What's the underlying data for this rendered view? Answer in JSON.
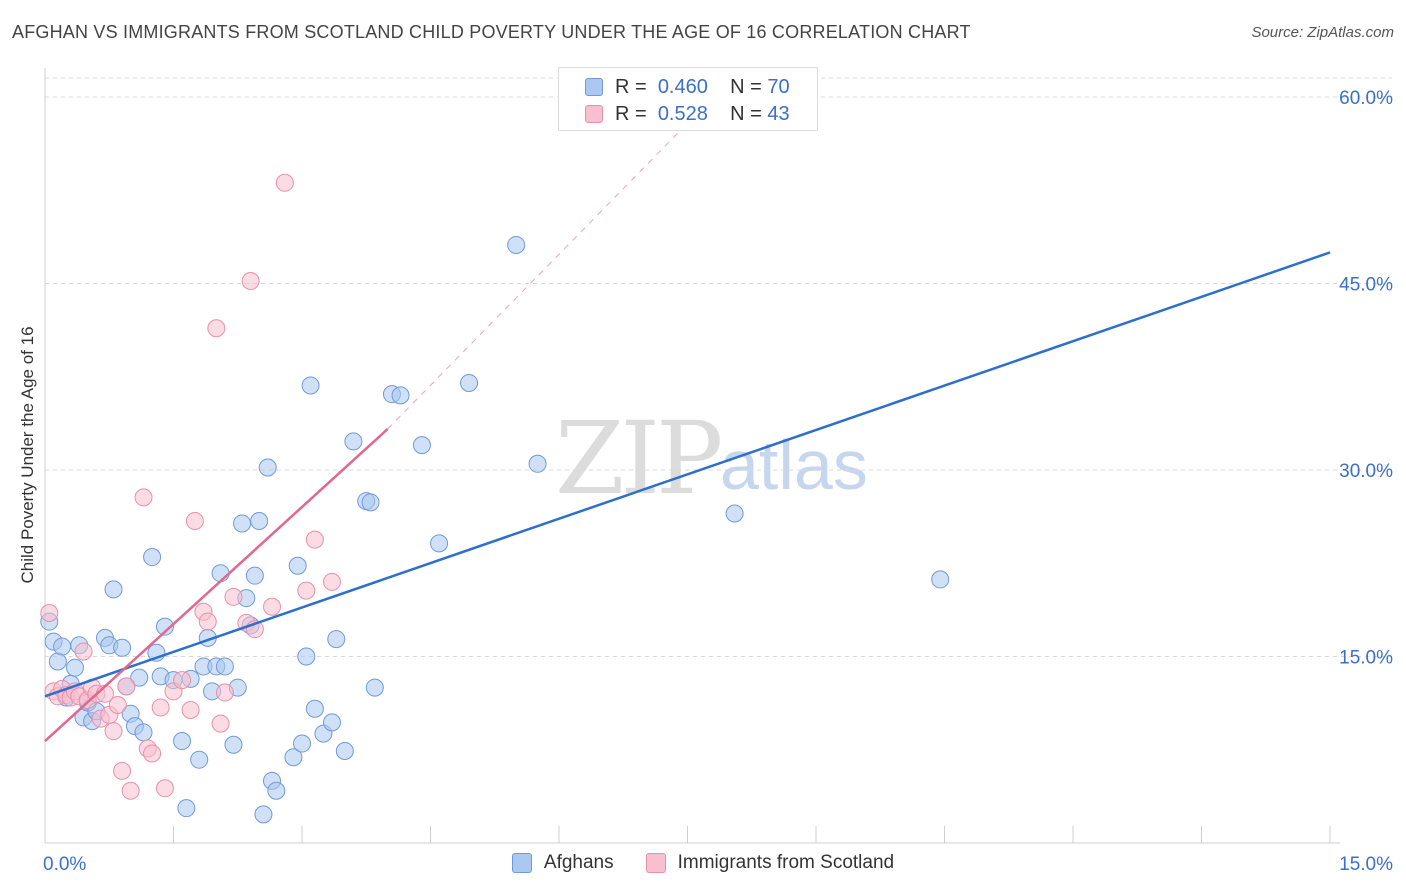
{
  "title": "AFGHAN VS IMMIGRANTS FROM SCOTLAND CHILD POVERTY UNDER THE AGE OF 16 CORRELATION CHART",
  "source": "Source: ZipAtlas.com",
  "watermark": {
    "zip": "ZIP",
    "atlas": "atlas"
  },
  "legend_top": {
    "rows": [
      {
        "r_label": "R =",
        "r_value": "0.460",
        "n_label": "N =",
        "n_value": "70"
      },
      {
        "r_label": "R =",
        "r_value": "0.528",
        "n_label": "N =",
        "n_value": "43"
      }
    ]
  },
  "colors": {
    "blue_fill": "#aac8f0",
    "blue_stroke": "#6f9ad8",
    "blue_line": "#2f6fcc",
    "pink_fill": "#f8bfd0",
    "pink_stroke": "#e890aa",
    "pink_line": "#e3668f",
    "tick_label": "#3b6fc9",
    "grid": "#d8d8d8"
  },
  "chart_data": {
    "type": "scatter",
    "title": "AFGHAN VS IMMIGRANTS FROM SCOTLAND CHILD POVERTY UNDER THE AGE OF 16 CORRELATION CHART",
    "xlabel": "",
    "ylabel": "Child Poverty Under the Age of 16",
    "xlim": [
      0,
      15
    ],
    "ylim": [
      0,
      60
    ],
    "x_ticks": [
      0,
      15
    ],
    "x_tick_labels": [
      "0.0%",
      "15.0%"
    ],
    "y_ticks": [
      15,
      30,
      45,
      60
    ],
    "y_tick_labels": [
      "15.0%",
      "30.0%",
      "45.0%",
      "60.0%"
    ],
    "grid": true,
    "legend_position": "bottom",
    "series": [
      {
        "name": "Afghans",
        "color": "#aac8f0",
        "points": [
          [
            0.05,
            17.8
          ],
          [
            0.1,
            16.2
          ],
          [
            0.15,
            14.6
          ],
          [
            0.2,
            15.8
          ],
          [
            0.25,
            11.7
          ],
          [
            0.3,
            12.8
          ],
          [
            0.35,
            14.1
          ],
          [
            0.4,
            15.9
          ],
          [
            0.45,
            10.1
          ],
          [
            0.5,
            11.3
          ],
          [
            0.55,
            9.8
          ],
          [
            0.6,
            10.6
          ],
          [
            0.7,
            16.5
          ],
          [
            0.75,
            15.9
          ],
          [
            0.8,
            20.4
          ],
          [
            0.9,
            15.7
          ],
          [
            0.95,
            12.6
          ],
          [
            1.0,
            10.4
          ],
          [
            1.05,
            9.4
          ],
          [
            1.1,
            13.3
          ],
          [
            1.15,
            8.9
          ],
          [
            1.25,
            23.0
          ],
          [
            1.3,
            15.3
          ],
          [
            1.35,
            13.4
          ],
          [
            1.4,
            17.4
          ],
          [
            1.5,
            13.1
          ],
          [
            1.6,
            8.2
          ],
          [
            1.65,
            2.8
          ],
          [
            1.7,
            13.2
          ],
          [
            1.8,
            6.7
          ],
          [
            1.85,
            14.2
          ],
          [
            1.9,
            16.5
          ],
          [
            1.95,
            12.2
          ],
          [
            2.0,
            14.2
          ],
          [
            2.05,
            21.7
          ],
          [
            2.1,
            14.2
          ],
          [
            2.2,
            7.9
          ],
          [
            2.25,
            12.5
          ],
          [
            2.3,
            25.7
          ],
          [
            2.35,
            19.7
          ],
          [
            2.4,
            17.5
          ],
          [
            2.45,
            21.5
          ],
          [
            2.5,
            25.9
          ],
          [
            2.55,
            2.3
          ],
          [
            2.6,
            30.2
          ],
          [
            2.65,
            5.0
          ],
          [
            2.7,
            4.2
          ],
          [
            2.9,
            6.9
          ],
          [
            2.95,
            22.3
          ],
          [
            3.0,
            8.0
          ],
          [
            3.05,
            15.0
          ],
          [
            3.1,
            36.8
          ],
          [
            3.15,
            10.8
          ],
          [
            3.25,
            8.8
          ],
          [
            3.35,
            9.7
          ],
          [
            3.4,
            16.4
          ],
          [
            3.5,
            7.4
          ],
          [
            3.6,
            32.3
          ],
          [
            3.75,
            27.5
          ],
          [
            3.8,
            27.4
          ],
          [
            3.85,
            12.5
          ],
          [
            4.05,
            36.1
          ],
          [
            4.15,
            36.0
          ],
          [
            4.4,
            32.0
          ],
          [
            4.6,
            24.1
          ],
          [
            4.95,
            37.0
          ],
          [
            5.5,
            48.1
          ],
          [
            5.75,
            30.5
          ],
          [
            8.05,
            26.5
          ],
          [
            10.45,
            21.2
          ]
        ]
      },
      {
        "name": "Immigrants from Scotland",
        "color": "#f8bfd0",
        "points": [
          [
            0.05,
            18.5
          ],
          [
            0.1,
            12.2
          ],
          [
            0.15,
            11.8
          ],
          [
            0.2,
            12.4
          ],
          [
            0.25,
            11.9
          ],
          [
            0.3,
            11.7
          ],
          [
            0.35,
            12.2
          ],
          [
            0.4,
            11.8
          ],
          [
            0.45,
            15.4
          ],
          [
            0.5,
            11.5
          ],
          [
            0.55,
            12.5
          ],
          [
            0.6,
            12.0
          ],
          [
            0.65,
            10.0
          ],
          [
            0.7,
            12.0
          ],
          [
            0.75,
            10.3
          ],
          [
            0.8,
            9.0
          ],
          [
            0.85,
            11.1
          ],
          [
            0.9,
            5.8
          ],
          [
            0.95,
            12.6
          ],
          [
            1.0,
            4.2
          ],
          [
            1.15,
            27.8
          ],
          [
            1.2,
            7.6
          ],
          [
            1.25,
            7.2
          ],
          [
            1.35,
            10.9
          ],
          [
            1.4,
            4.4
          ],
          [
            1.5,
            12.2
          ],
          [
            1.6,
            13.1
          ],
          [
            1.7,
            10.7
          ],
          [
            1.75,
            25.9
          ],
          [
            1.85,
            18.6
          ],
          [
            1.9,
            17.8
          ],
          [
            2.0,
            41.4
          ],
          [
            2.05,
            9.6
          ],
          [
            2.1,
            12.1
          ],
          [
            2.2,
            19.8
          ],
          [
            2.35,
            17.7
          ],
          [
            2.4,
            45.2
          ],
          [
            2.45,
            17.2
          ],
          [
            2.65,
            19.0
          ],
          [
            2.8,
            53.1
          ],
          [
            3.05,
            20.3
          ],
          [
            3.15,
            24.4
          ],
          [
            3.35,
            21.0
          ]
        ]
      }
    ],
    "trend_lines": [
      {
        "series": "Afghans",
        "x": [
          0,
          15
        ],
        "y": [
          11.8,
          47.5
        ],
        "style": "solid"
      },
      {
        "series": "Immigrants from Scotland",
        "x": [
          0,
          4.0
        ],
        "y": [
          8.2,
          33.3
        ],
        "style": "solid",
        "extended_to": [
          7.8,
          60.0
        ],
        "extension_style": "dashed"
      }
    ]
  },
  "legend_bottom": [
    {
      "label": "Afghans"
    },
    {
      "label": "Immigrants from Scotland"
    }
  ]
}
